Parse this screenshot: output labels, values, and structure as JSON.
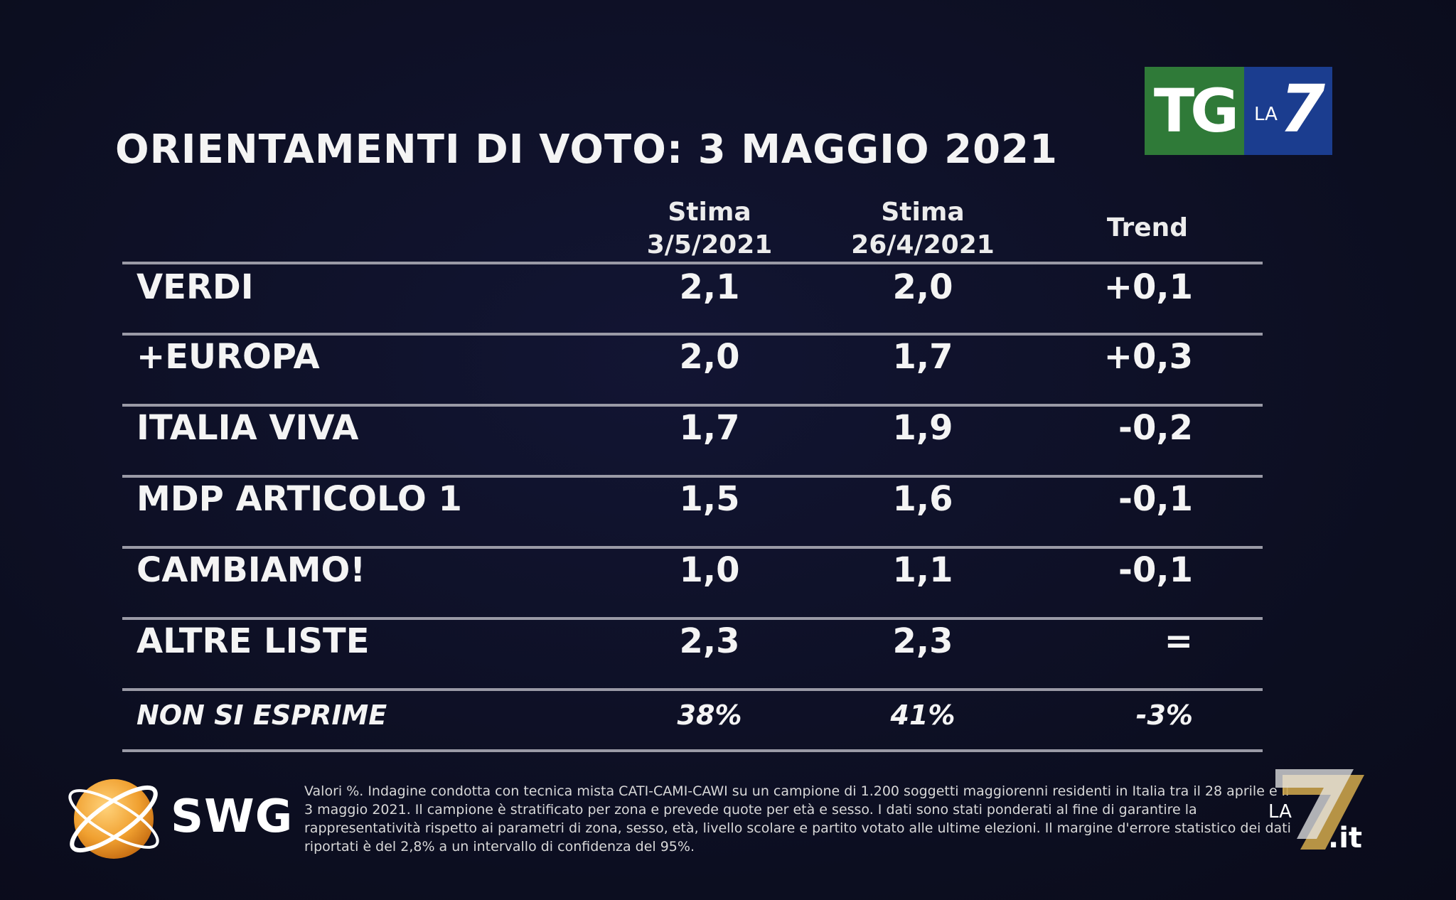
{
  "title": "ORIENTAMENTI DI VOTO: 3 MAGGIO 2021",
  "logo": {
    "tg": "TG",
    "la": "LA",
    "seven": "7"
  },
  "columns": {
    "col1_line1": "Stima",
    "col1_line2": "3/5/2021",
    "col2_line1": "Stima",
    "col2_line2": "26/4/2021",
    "col3": "Trend"
  },
  "chart_data": {
    "type": "table",
    "title": "ORIENTAMENTI DI VOTO: 3 MAGGIO 2021",
    "columns": [
      "Stima 3/5/2021",
      "Stima 26/4/2021",
      "Trend"
    ],
    "rows": [
      {
        "party": "VERDI",
        "current": "2,1",
        "previous": "2,0",
        "trend": "+0,1"
      },
      {
        "party": "+EUROPA",
        "current": "2,0",
        "previous": "1,7",
        "trend": "+0,3"
      },
      {
        "party": "ITALIA VIVA",
        "current": "1,7",
        "previous": "1,9",
        "trend": "-0,2"
      },
      {
        "party": "MDP ARTICOLO 1",
        "current": "1,5",
        "previous": "1,6",
        "trend": "-0,1"
      },
      {
        "party": "CAMBIAMO!",
        "current": "1,0",
        "previous": "1,1",
        "trend": "-0,1"
      },
      {
        "party": "ALTRE LISTE",
        "current": "2,3",
        "previous": "2,3",
        "trend": "="
      },
      {
        "party": "NON SI ESPRIME",
        "current": "38%",
        "previous": "41%",
        "trend": "-3%"
      }
    ]
  },
  "footer": {
    "swg": "SWG",
    "note": "Valori %. Indagine condotta con tecnica mista CATI-CAMI-CAWI su un campione di 1.200 soggetti maggiorenni residenti in Italia tra il 28 aprile e il 3 maggio 2021. Il campione è stratificato per zona e prevede quote per età e sesso. I dati sono stati ponderati al fine di garantire la rappresentatività rispetto ai parametri di zona, sesso, età, livello scolare e partito votato alle ultime elezioni. Il margine d'errore statistico dei dati riportati è del 2,8% a un intervallo di confidenza del 95%.",
    "la7it_la": "LA",
    "la7it_seven": "7",
    "la7it_it": ".it"
  },
  "colors": {
    "tg_green": "#2f7a38",
    "tg_blue": "#1b3d8f",
    "swg_orange": "#f0a030",
    "la7_gold": "#c9a24a"
  }
}
